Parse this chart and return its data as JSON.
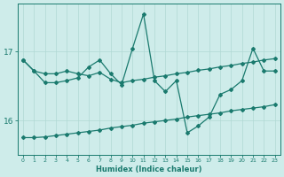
{
  "xlabel": "Humidex (Indice chaleur)",
  "x_values": [
    0,
    1,
    2,
    3,
    4,
    5,
    6,
    7,
    8,
    9,
    10,
    11,
    12,
    13,
    14,
    15,
    16,
    17,
    18,
    19,
    20,
    21,
    22,
    23
  ],
  "line_main": [
    16.88,
    16.72,
    16.55,
    16.55,
    16.58,
    16.62,
    16.78,
    16.88,
    16.68,
    16.52,
    17.05,
    17.55,
    16.58,
    16.42,
    16.58,
    15.82,
    15.92,
    16.05,
    16.38,
    16.45,
    16.58,
    17.05,
    16.72,
    16.72
  ],
  "line_upper": [
    16.88,
    16.72,
    16.68,
    16.68,
    16.72,
    16.68,
    16.65,
    16.7,
    16.6,
    16.55,
    16.58,
    16.6,
    16.63,
    16.65,
    16.68,
    16.7,
    16.73,
    16.75,
    16.78,
    16.8,
    16.83,
    16.85,
    16.88,
    16.9
  ],
  "line_lower": [
    15.75,
    15.75,
    15.76,
    15.78,
    15.8,
    15.82,
    15.84,
    15.86,
    15.89,
    15.91,
    15.93,
    15.96,
    15.98,
    16.0,
    16.02,
    16.05,
    16.07,
    16.09,
    16.11,
    16.14,
    16.16,
    16.18,
    16.2,
    16.23
  ],
  "ylim": [
    15.5,
    17.7
  ],
  "yticks": [
    16,
    17
  ],
  "xticks": [
    0,
    1,
    2,
    3,
    4,
    5,
    6,
    7,
    8,
    9,
    10,
    11,
    12,
    13,
    14,
    15,
    16,
    17,
    18,
    19,
    20,
    21,
    22,
    23
  ],
  "color": "#1a7a6e",
  "bg_color": "#ceecea",
  "grid_color": "#b0d8d4"
}
